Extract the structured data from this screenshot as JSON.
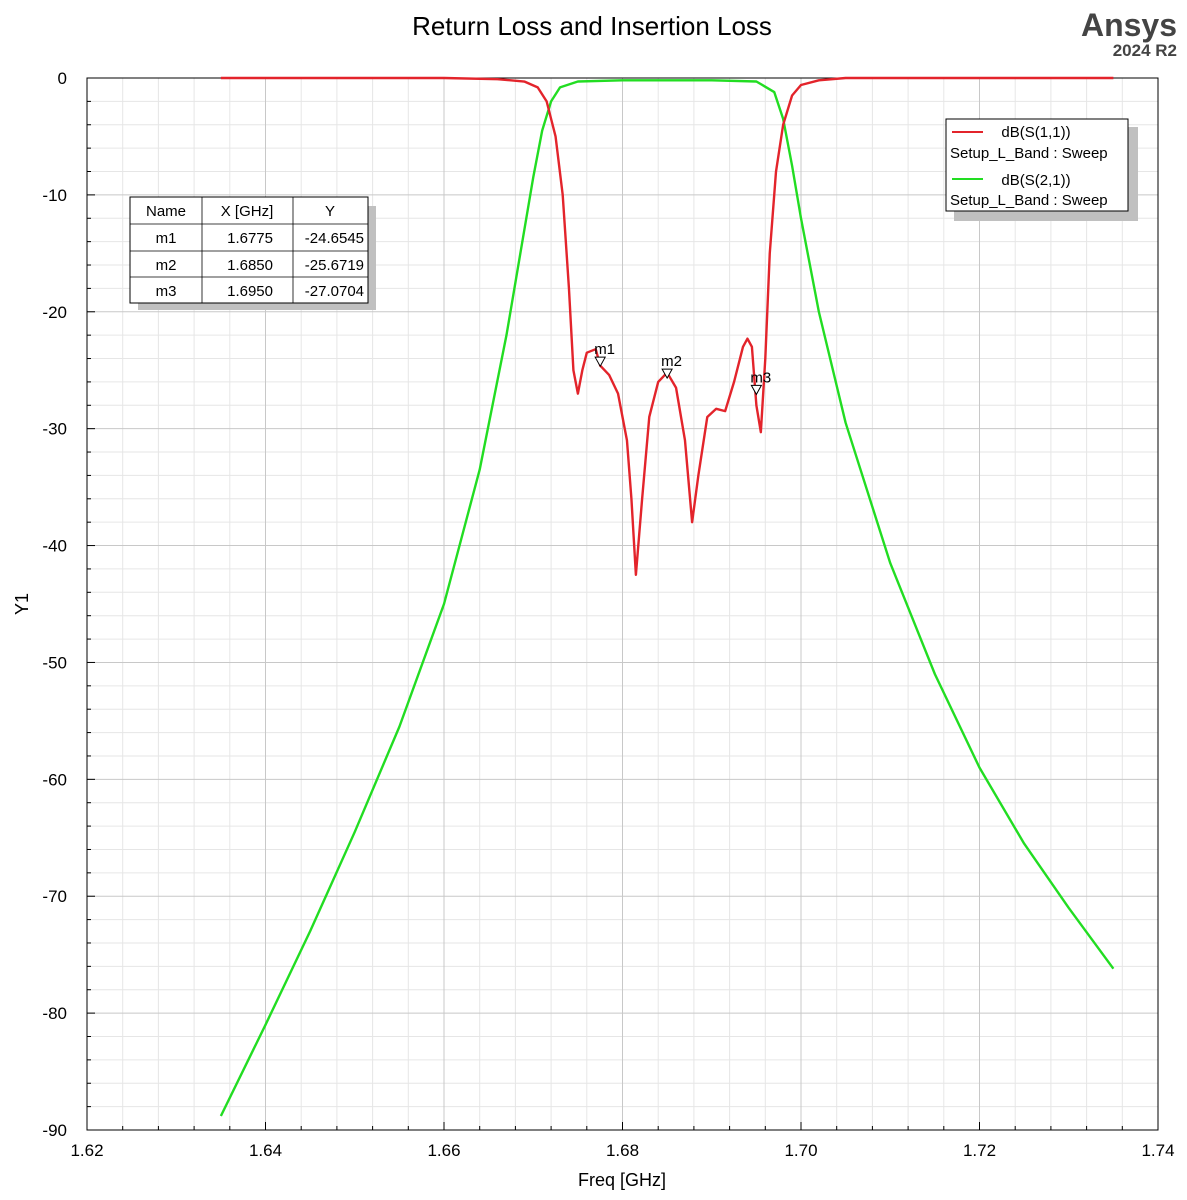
{
  "brand": {
    "name": "Ansys",
    "version": "2024 R2"
  },
  "chart_data": {
    "type": "line",
    "title": "Return Loss and Insertion Loss",
    "xlabel": "Freq [GHz]",
    "ylabel": "Y1",
    "xlim": [
      1.62,
      1.74
    ],
    "ylim": [
      -90,
      0
    ],
    "x_ticks": [
      "1.62",
      "1.64",
      "1.66",
      "1.68",
      "1.70",
      "1.72",
      "1.74"
    ],
    "y_ticks": [
      "0",
      "-10",
      "-20",
      "-30",
      "-40",
      "-50",
      "-60",
      "-70",
      "-80",
      "-90"
    ],
    "grid": true,
    "legend_position": "top-right",
    "series": [
      {
        "name": "dB(S(1,1))",
        "setup": "Setup_L_Band : Sweep",
        "color": "#e3242b",
        "points": [
          [
            1.635,
            0
          ],
          [
            1.66,
            0
          ],
          [
            1.666,
            -0.1
          ],
          [
            1.669,
            -0.3
          ],
          [
            1.6705,
            -0.8
          ],
          [
            1.6715,
            -2
          ],
          [
            1.6725,
            -5
          ],
          [
            1.6733,
            -10
          ],
          [
            1.674,
            -18
          ],
          [
            1.6745,
            -25
          ],
          [
            1.675,
            -27
          ],
          [
            1.6755,
            -25
          ],
          [
            1.676,
            -23.5
          ],
          [
            1.677,
            -23.2
          ],
          [
            1.6775,
            -24.6
          ],
          [
            1.6785,
            -25.4
          ],
          [
            1.6795,
            -27
          ],
          [
            1.6805,
            -31
          ],
          [
            1.681,
            -36
          ],
          [
            1.6815,
            -42.5
          ],
          [
            1.6822,
            -36
          ],
          [
            1.683,
            -29
          ],
          [
            1.684,
            -26
          ],
          [
            1.685,
            -25.2
          ],
          [
            1.686,
            -26.5
          ],
          [
            1.687,
            -31
          ],
          [
            1.6878,
            -38
          ],
          [
            1.6885,
            -34
          ],
          [
            1.6895,
            -29
          ],
          [
            1.6905,
            -28.3
          ],
          [
            1.6915,
            -28.5
          ],
          [
            1.6925,
            -26
          ],
          [
            1.6935,
            -23
          ],
          [
            1.694,
            -22.3
          ],
          [
            1.6945,
            -23
          ],
          [
            1.695,
            -28
          ],
          [
            1.6955,
            -30.3
          ],
          [
            1.696,
            -24
          ],
          [
            1.6965,
            -15
          ],
          [
            1.6972,
            -8
          ],
          [
            1.698,
            -4
          ],
          [
            1.699,
            -1.5
          ],
          [
            1.7,
            -0.6
          ],
          [
            1.702,
            -0.2
          ],
          [
            1.705,
            0
          ],
          [
            1.735,
            0
          ]
        ]
      },
      {
        "name": "dB(S(2,1))",
        "setup": "Setup_L_Band : Sweep",
        "color": "#22dd22",
        "points": [
          [
            1.635,
            -88.8
          ],
          [
            1.64,
            -81
          ],
          [
            1.645,
            -73
          ],
          [
            1.65,
            -64.5
          ],
          [
            1.655,
            -55.5
          ],
          [
            1.66,
            -45
          ],
          [
            1.664,
            -33.5
          ],
          [
            1.667,
            -22
          ],
          [
            1.669,
            -13
          ],
          [
            1.67,
            -8.5
          ],
          [
            1.671,
            -4.5
          ],
          [
            1.672,
            -2
          ],
          [
            1.673,
            -0.8
          ],
          [
            1.675,
            -0.3
          ],
          [
            1.68,
            -0.2
          ],
          [
            1.69,
            -0.2
          ],
          [
            1.695,
            -0.3
          ],
          [
            1.697,
            -1.2
          ],
          [
            1.698,
            -3.5
          ],
          [
            1.699,
            -7.5
          ],
          [
            1.7,
            -12
          ],
          [
            1.702,
            -20
          ],
          [
            1.705,
            -29.5
          ],
          [
            1.71,
            -41.5
          ],
          [
            1.715,
            -51
          ],
          [
            1.72,
            -59
          ],
          [
            1.725,
            -65.5
          ],
          [
            1.73,
            -71
          ],
          [
            1.735,
            -76.2
          ]
        ]
      }
    ],
    "markers": [
      {
        "name": "m1",
        "x": 1.6775,
        "y": -24.6545
      },
      {
        "name": "m2",
        "x": 1.685,
        "y": -25.6719
      },
      {
        "name": "m3",
        "x": 1.695,
        "y": -27.0704
      }
    ],
    "marker_table": {
      "headers": [
        "Name",
        "X [GHz]",
        "Y"
      ],
      "rows": [
        [
          "m1",
          "1.6775",
          "-24.6545"
        ],
        [
          "m2",
          "1.6850",
          "-25.6719"
        ],
        [
          "m3",
          "1.6950",
          "-27.0704"
        ]
      ]
    }
  }
}
